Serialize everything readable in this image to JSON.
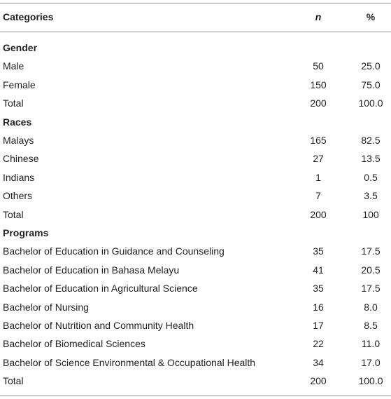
{
  "table": {
    "header": [
      "Categories",
      "n",
      "%"
    ],
    "sections": [
      {
        "title": "Gender",
        "rows": [
          [
            "Male",
            "50",
            "25.0"
          ],
          [
            "Female",
            "150",
            "75.0"
          ],
          [
            "Total",
            "200",
            "100.0"
          ]
        ]
      },
      {
        "title": "Races",
        "rows": [
          [
            "Malays",
            "165",
            "82.5"
          ],
          [
            "Chinese",
            "27",
            "13.5"
          ],
          [
            "Indians",
            "1",
            "0.5"
          ],
          [
            "Others",
            "7",
            "3.5"
          ],
          [
            "Total",
            "200",
            "100"
          ]
        ]
      },
      {
        "title": "Programs",
        "rows": [
          [
            "Bachelor of Education in Guidance and Counseling",
            "35",
            "17.5"
          ],
          [
            "Bachelor of Education in Bahasa Melayu",
            "41",
            "20.5"
          ],
          [
            "Bachelor of Education in Agricultural Science",
            "35",
            "17.5"
          ],
          [
            "Bachelor of Nursing",
            "16",
            "8.0"
          ],
          [
            "Bachelor of Nutrition and Community Health",
            "17",
            "8.5"
          ],
          [
            "Bachelor of Biomedical Sciences",
            "22",
            "11.0"
          ],
          [
            "Bachelor of Science Environmental & Occupational Health",
            "34",
            "17.0"
          ],
          [
            "Total",
            "200",
            "100.0"
          ]
        ]
      }
    ]
  }
}
